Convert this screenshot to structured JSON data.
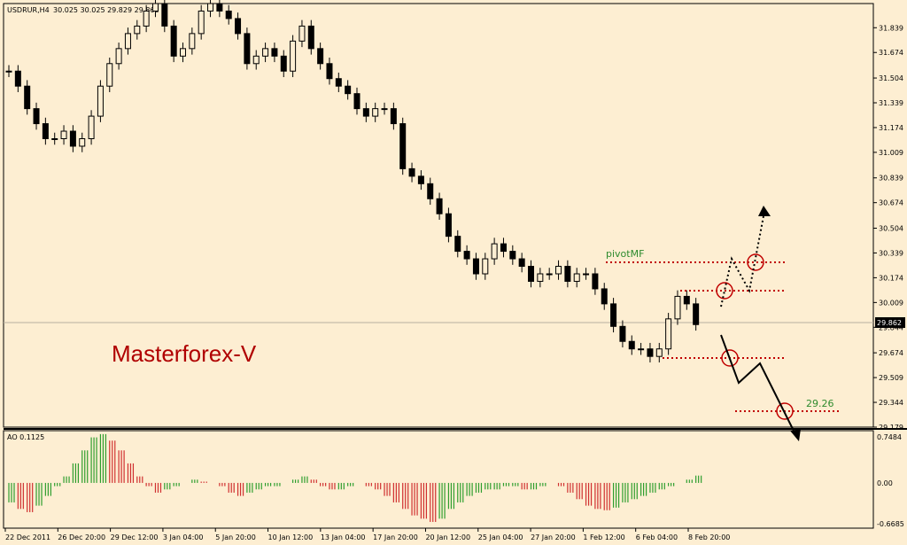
{
  "header": {
    "symbol_info": "USDRUR,H4",
    "ohlc": "30.025 30.025 29.829 29.862"
  },
  "watermark": "Masterforex-V",
  "annotations": {
    "pivot_label": "pivotMF",
    "target_label": "29.26"
  },
  "current_price_label": "29.862",
  "indicator": {
    "label": "AO 0.1125",
    "y_ticks": [
      "0.7484",
      "0.00",
      "-0.6685"
    ]
  },
  "colors": {
    "background": "#fdeed2",
    "candle": "#000000",
    "ao_up": "#2e9e2e",
    "ao_down": "#d03030",
    "level_line": "#c00000",
    "watermark": "#b00000",
    "label_green": "#2e8b2e"
  },
  "chart_data": [
    {
      "type": "candlestick",
      "title": "USDRUR,H4",
      "ylim": [
        29.179,
        32.0
      ],
      "y_ticks": [
        "31.839",
        "31.674",
        "31.504",
        "31.339",
        "31.174",
        "31.009",
        "30.839",
        "30.674",
        "30.504",
        "30.339",
        "30.174",
        "30.009",
        "29.844",
        "29.674",
        "29.509",
        "29.344",
        "29.179"
      ],
      "x_ticks": [
        "22 Dec 2011",
        "26 Dec 20:00",
        "29 Dec 12:00",
        "3 Jan 04:00",
        "5 Jan 20:00",
        "10 Jan 12:00",
        "13 Jan 04:00",
        "17 Jan 20:00",
        "20 Jan 12:00",
        "25 Jan 04:00",
        "27 Jan 20:00",
        "1 Feb 12:00",
        "6 Feb 04:00",
        "8 Feb 20:00"
      ],
      "close_series": [
        31.55,
        31.45,
        31.3,
        31.2,
        31.1,
        31.1,
        31.15,
        31.05,
        31.1,
        31.25,
        31.45,
        31.6,
        31.7,
        31.8,
        31.85,
        31.95,
        32.0,
        31.85,
        31.65,
        31.7,
        31.8,
        31.95,
        32.0,
        31.95,
        31.9,
        31.8,
        31.6,
        31.65,
        31.7,
        31.65,
        31.55,
        31.75,
        31.85,
        31.7,
        31.6,
        31.5,
        31.45,
        31.4,
        31.3,
        31.25,
        31.3,
        31.3,
        31.2,
        30.9,
        30.85,
        30.8,
        30.7,
        30.6,
        30.45,
        30.35,
        30.3,
        30.2,
        30.3,
        30.4,
        30.35,
        30.3,
        30.25,
        30.15,
        30.2,
        30.2,
        30.25,
        30.15,
        30.2,
        30.2,
        30.1,
        30.0,
        29.85,
        29.75,
        29.7,
        29.7,
        29.65,
        29.7,
        29.9,
        30.05,
        30.0,
        29.862
      ],
      "current_price": 29.862,
      "annotations": [
        "pivotMF",
        "29.26"
      ],
      "levels": [
        30.3,
        30.09,
        29.63,
        29.28
      ]
    },
    {
      "type": "bar",
      "title": "AO 0.1125",
      "ylim": [
        -0.6685,
        0.7484
      ],
      "y_ticks": [
        "0.7484",
        "0.00",
        "-0.6685"
      ],
      "values": [
        -0.3,
        -0.4,
        -0.45,
        -0.35,
        -0.2,
        -0.05,
        0.1,
        0.3,
        0.5,
        0.7,
        0.75,
        0.65,
        0.5,
        0.3,
        0.1,
        -0.05,
        -0.15,
        -0.1,
        -0.05,
        0.0,
        0.05,
        0.02,
        0.0,
        -0.05,
        -0.15,
        -0.2,
        -0.15,
        -0.1,
        -0.05,
        -0.05,
        0.0,
        0.05,
        0.1,
        0.05,
        -0.05,
        -0.1,
        -0.1,
        -0.05,
        0.0,
        -0.05,
        -0.1,
        -0.2,
        -0.3,
        -0.4,
        -0.5,
        -0.55,
        -0.6,
        -0.55,
        -0.4,
        -0.3,
        -0.2,
        -0.15,
        -0.1,
        -0.1,
        -0.05,
        -0.05,
        -0.1,
        -0.1,
        -0.05,
        0.0,
        -0.05,
        -0.15,
        -0.25,
        -0.35,
        -0.4,
        -0.42,
        -0.38,
        -0.3,
        -0.25,
        -0.2,
        -0.15,
        -0.1,
        -0.05,
        0.0,
        0.05,
        0.1125
      ]
    }
  ]
}
